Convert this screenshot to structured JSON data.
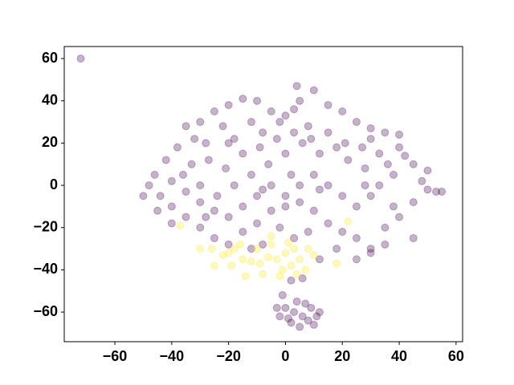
{
  "chart_data": {
    "type": "scatter",
    "xlim": [
      -77.8,
      62.3
    ],
    "ylim": [
      -74,
      65.7
    ],
    "xticks": [
      {
        "value": -60,
        "label": "−60"
      },
      {
        "value": -40,
        "label": "−40"
      },
      {
        "value": -20,
        "label": "−20"
      },
      0,
      20,
      40,
      60
    ],
    "yticks": [
      {
        "value": -60,
        "label": "−60"
      },
      {
        "value": -40,
        "label": "−40"
      },
      {
        "value": -20,
        "label": "−20"
      },
      0,
      20,
      40,
      60
    ],
    "grid": false,
    "series": [
      {
        "color": "#440154",
        "x": [
          -72,
          -5,
          0,
          3,
          -2,
          5,
          4,
          10,
          -10,
          -15,
          -20,
          -25,
          -30,
          -35,
          15,
          20,
          25,
          30,
          35,
          40,
          8,
          -8,
          -18,
          -28,
          -38,
          -42,
          -46,
          -48,
          -44,
          -40,
          -35,
          -30,
          -25,
          -20,
          -15,
          -10,
          -5,
          0,
          5,
          10,
          15,
          20,
          25,
          30,
          35,
          40,
          45,
          50,
          53,
          48,
          45,
          42,
          50,
          55,
          38,
          33,
          28,
          22,
          18,
          12,
          6,
          0,
          -6,
          -12,
          -18,
          -24,
          -30,
          -36,
          -33,
          -27,
          -21,
          -15,
          -9,
          -3,
          3,
          9,
          15,
          21,
          27,
          33,
          36,
          30,
          25,
          20,
          15,
          10,
          5,
          0,
          -5,
          -10,
          -15,
          -20,
          -25,
          -30,
          -35,
          -40,
          -2,
          3,
          8,
          -8,
          -12,
          30,
          35,
          2,
          -1,
          6,
          -40,
          -45,
          -50,
          25,
          12,
          18,
          38,
          45,
          30,
          -22,
          -12,
          -32,
          40,
          28,
          -8,
          2,
          12,
          -20,
          -28,
          0,
          3,
          6,
          9,
          12,
          2,
          5,
          8,
          -2,
          -3,
          4,
          10,
          7,
          1,
          11
        ],
        "values": [
          60,
          35,
          33,
          36,
          30,
          40,
          47,
          45,
          40,
          41,
          38,
          35,
          30,
          28,
          38,
          35,
          30,
          27,
          25,
          24,
          28,
          25,
          22,
          20,
          18,
          12,
          5,
          0,
          -5,
          -10,
          -15,
          -20,
          -25,
          -28,
          -22,
          -18,
          -12,
          -10,
          -8,
          -12,
          -18,
          -22,
          -25,
          -30,
          -20,
          -15,
          -8,
          -2,
          -3,
          2,
          10,
          14,
          7,
          -3,
          5,
          0,
          8,
          12,
          18,
          15,
          20,
          15,
          10,
          5,
          0,
          -5,
          0,
          5,
          10,
          12,
          8,
          15,
          18,
          22,
          25,
          22,
          25,
          20,
          18,
          15,
          10,
          -5,
          -10,
          -5,
          0,
          5,
          0,
          -5,
          0,
          -5,
          -10,
          -15,
          -12,
          -8,
          -3,
          2,
          -20,
          -25,
          -22,
          -28,
          -30,
          -32,
          -28,
          -45,
          -52,
          -44,
          -18,
          -12,
          -5,
          -35,
          -35,
          -30,
          -10,
          -25,
          22,
          28,
          30,
          22,
          18,
          0,
          -2,
          5,
          -2,
          20,
          -15,
          -58,
          -60,
          -62,
          -58,
          -60,
          -65,
          -67,
          -64,
          -62,
          -58,
          -55,
          -66,
          -56,
          -63,
          -62
        ]
      },
      {
        "color": "#fde725",
        "x": [
          -25,
          -20,
          -15,
          -10,
          -5,
          0,
          2,
          4,
          -2,
          -8,
          -12,
          -18,
          -22,
          -26,
          -30,
          5,
          8,
          10,
          -3,
          1,
          -14,
          -6,
          18,
          -37,
          22,
          -5,
          3,
          -16,
          -9,
          7,
          -1,
          -19
        ],
        "values": [
          -38,
          -32,
          -35,
          -30,
          -28,
          -32,
          -38,
          -42,
          -43,
          -42,
          -36,
          -30,
          -33,
          -30,
          -30,
          -35,
          -30,
          -33,
          -35,
          -27,
          -43,
          -34,
          -37,
          -19,
          -17,
          -24,
          -30,
          -28,
          -37,
          -40,
          -40,
          -38
        ]
      }
    ]
  }
}
